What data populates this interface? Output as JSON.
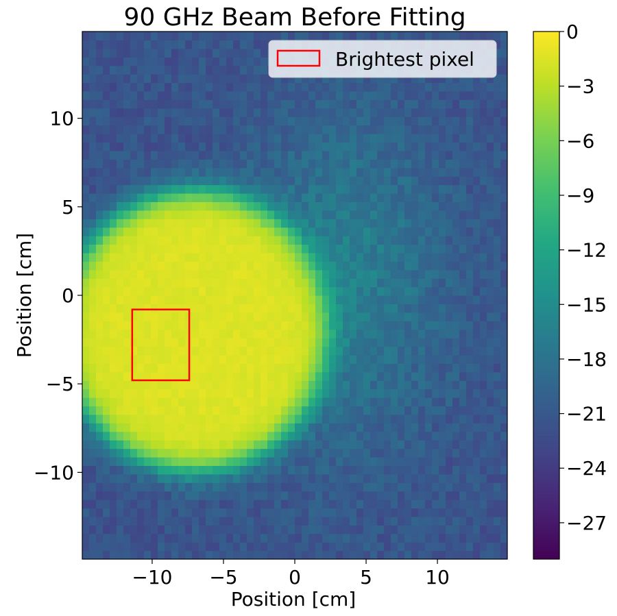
{
  "chart_data": {
    "type": "heatmap",
    "title": "90 GHz Beam Before Fitting",
    "xlabel": "Position [cm]",
    "ylabel": "Position [cm]",
    "xlim": [
      -14.9,
      14.9
    ],
    "ylim": [
      -14.9,
      14.9
    ],
    "xticks": [
      -10,
      -5,
      0,
      5,
      10
    ],
    "xtick_labels": [
      "−10",
      "−5",
      "0",
      "5",
      "10"
    ],
    "yticks": [
      10,
      5,
      0,
      -5,
      -10
    ],
    "ytick_labels": [
      "10",
      "5",
      "0",
      "−5",
      "−10"
    ],
    "colormap": "viridis",
    "color_range": [
      -29,
      0
    ],
    "colorbar_ticks": [
      0,
      -3,
      -6,
      -9,
      -12,
      -15,
      -18,
      -21,
      -24,
      -27
    ],
    "colorbar_tick_labels": [
      "0",
      "−3",
      "−6",
      "−9",
      "−12",
      "−15",
      "−18",
      "−21",
      "−24",
      "−27"
    ],
    "beam": {
      "center_x": -7.0,
      "center_y": -2.0,
      "half_width_x": 9.8,
      "half_height_y": 8.4,
      "plateau_value_db": -1.5,
      "background_value_db": -21.5,
      "sidelobe_center_x": 3.5,
      "sidelobe_center_y": 1.0,
      "sidelobe_value_db": -16.5
    },
    "grid": false,
    "legend": {
      "position": "top-right",
      "entries": [
        {
          "label": "Brightest pixel",
          "marker": "rectangle-outline",
          "color": "#ff0000"
        }
      ]
    },
    "annotations": [
      {
        "kind": "rectangle",
        "label": "Brightest pixel",
        "x0": -11.4,
        "x1": -7.4,
        "y0": -4.8,
        "y1": -0.8,
        "color": "#ff0000"
      }
    ]
  }
}
